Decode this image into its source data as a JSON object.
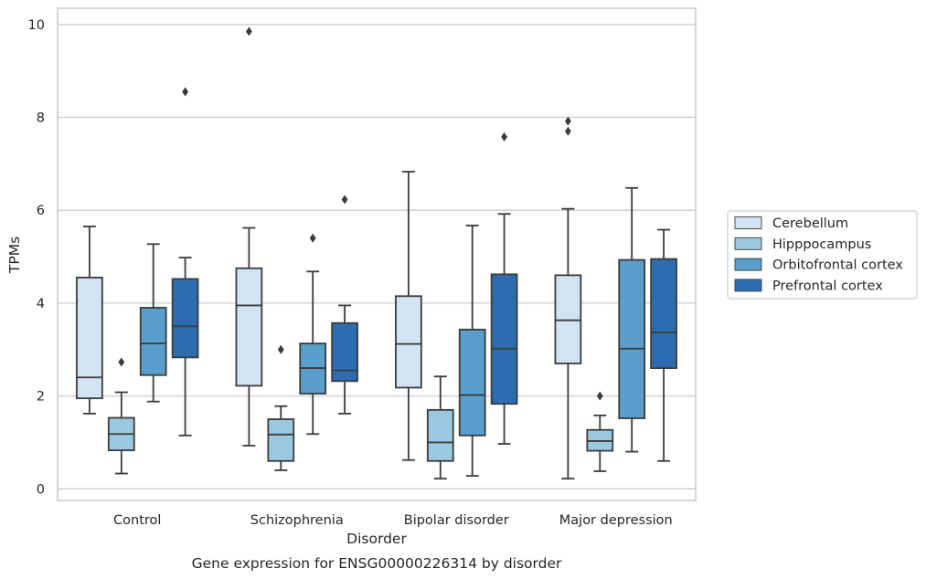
{
  "chart_data": {
    "type": "box",
    "caption": "Gene expression for ENSG00000226314 by disorder",
    "xlabel": "Disorder",
    "ylabel": "TPMs",
    "ylim": [
      -0.25,
      10.35
    ],
    "yticks": [
      0,
      2,
      4,
      6,
      8,
      10
    ],
    "grid": "horizontal",
    "legend_position": "right",
    "categories": [
      "Control",
      "Schizophrenia",
      "Bipolar disorder",
      "Major depression"
    ],
    "series": [
      {
        "name": "Cerebellum",
        "color": "#d2e3f3",
        "boxes": [
          {
            "low": 1.62,
            "q1": 1.95,
            "median": 2.4,
            "q3": 4.55,
            "high": 5.65,
            "outliers": []
          },
          {
            "low": 0.93,
            "q1": 2.22,
            "median": 3.95,
            "q3": 4.75,
            "high": 5.62,
            "outliers": [
              9.85
            ]
          },
          {
            "low": 0.62,
            "q1": 2.18,
            "median": 3.12,
            "q3": 4.15,
            "high": 6.83,
            "outliers": []
          },
          {
            "low": 0.22,
            "q1": 2.7,
            "median": 3.63,
            "q3": 4.6,
            "high": 6.03,
            "outliers": [
              7.7,
              7.92
            ]
          }
        ]
      },
      {
        "name": "Hipppocampus",
        "color": "#9ac8e0",
        "boxes": [
          {
            "low": 0.33,
            "q1": 0.83,
            "median": 1.18,
            "q3": 1.53,
            "high": 2.08,
            "outliers": [
              2.73
            ]
          },
          {
            "low": 0.4,
            "q1": 0.6,
            "median": 1.17,
            "q3": 1.5,
            "high": 1.78,
            "outliers": [
              3.0
            ]
          },
          {
            "low": 0.22,
            "q1": 0.6,
            "median": 1.0,
            "q3": 1.7,
            "high": 2.42,
            "outliers": []
          },
          {
            "low": 0.38,
            "q1": 0.82,
            "median": 1.03,
            "q3": 1.27,
            "high": 1.58,
            "outliers": [
              2.0
            ]
          }
        ]
      },
      {
        "name": "Orbitofrontal cortex",
        "color": "#5a9ecb",
        "boxes": [
          {
            "low": 1.88,
            "q1": 2.45,
            "median": 3.13,
            "q3": 3.9,
            "high": 5.27,
            "outliers": []
          },
          {
            "low": 1.18,
            "q1": 2.05,
            "median": 2.6,
            "q3": 3.13,
            "high": 4.68,
            "outliers": [
              5.4
            ]
          },
          {
            "low": 0.28,
            "q1": 1.15,
            "median": 2.02,
            "q3": 3.43,
            "high": 5.67,
            "outliers": []
          },
          {
            "low": 0.8,
            "q1": 1.52,
            "median": 3.02,
            "q3": 4.93,
            "high": 6.48,
            "outliers": []
          }
        ]
      },
      {
        "name": "Prefrontal cortex",
        "color": "#2d6daf",
        "boxes": [
          {
            "low": 1.15,
            "q1": 2.83,
            "median": 3.5,
            "q3": 4.52,
            "high": 4.98,
            "outliers": [
              8.55
            ]
          },
          {
            "low": 1.62,
            "q1": 2.32,
            "median": 2.55,
            "q3": 3.57,
            "high": 3.95,
            "outliers": [
              6.23
            ]
          },
          {
            "low": 0.97,
            "q1": 1.83,
            "median": 3.02,
            "q3": 4.62,
            "high": 5.92,
            "outliers": [
              7.58
            ]
          },
          {
            "low": 0.6,
            "q1": 2.6,
            "median": 3.37,
            "q3": 4.95,
            "high": 5.58,
            "outliers": []
          }
        ]
      }
    ]
  }
}
